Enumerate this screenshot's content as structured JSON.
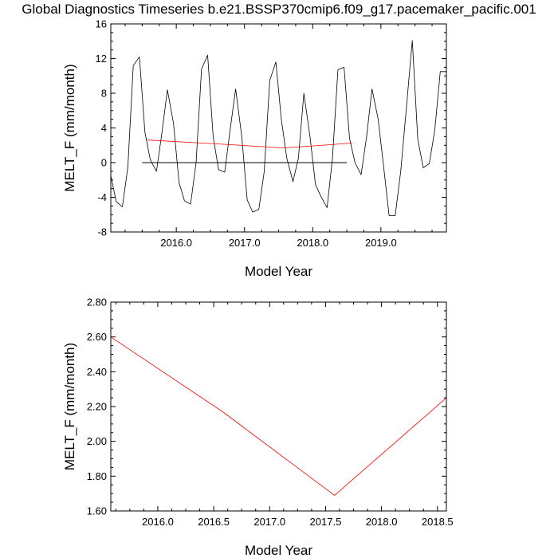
{
  "title": "Global Diagnostics Timeseries b.e21.BSSP370cmip6.f09_g17.pacemaker_pacific.001",
  "chart_data": [
    {
      "type": "line",
      "xlabel": "Model Year",
      "ylabel": "MELT_F (mm/month)",
      "xlim": [
        2015.04,
        2019.96
      ],
      "ylim": [
        -8,
        16
      ],
      "y_ticks": [
        -8,
        -4,
        0,
        4,
        8,
        12,
        16
      ],
      "y_tick_labels": [
        "-8",
        "-4",
        "0",
        "4",
        "8",
        "12",
        "16"
      ],
      "x_ticks": [
        2016.0,
        2017.0,
        2018.0,
        2019.0
      ],
      "x_tick_labels": [
        "2016.0",
        "2017.0",
        "2018.0",
        "2019.0"
      ],
      "reference_line": {
        "y": 0,
        "x_range": [
          2015.5,
          2018.5
        ],
        "color": "#000000"
      },
      "series": [
        {
          "color": "#000000",
          "x": [
            2015.04,
            2015.12,
            2015.21,
            2015.29,
            2015.37,
            2015.46,
            2015.54,
            2015.62,
            2015.71,
            2015.79,
            2015.87,
            2015.96,
            2016.04,
            2016.12,
            2016.21,
            2016.29,
            2016.37,
            2016.46,
            2016.54,
            2016.62,
            2016.71,
            2016.79,
            2016.87,
            2016.96,
            2017.04,
            2017.12,
            2017.21,
            2017.29,
            2017.37,
            2017.46,
            2017.54,
            2017.62,
            2017.71,
            2017.79,
            2017.87,
            2017.96,
            2018.04,
            2018.12,
            2018.21,
            2018.29,
            2018.37,
            2018.46,
            2018.54,
            2018.62,
            2018.71,
            2018.79,
            2018.87,
            2018.96,
            2019.04,
            2019.12,
            2019.21,
            2019.29,
            2019.37,
            2019.46,
            2019.54,
            2019.62,
            2019.71,
            2019.79,
            2019.87,
            2019.96
          ],
          "values": [
            -1.5,
            -4.5,
            -5.1,
            -0.5,
            11.2,
            12.2,
            3.5,
            0.3,
            -1.0,
            3.5,
            8.4,
            4.5,
            -2.3,
            -4.4,
            -4.8,
            0.0,
            10.8,
            12.4,
            3.0,
            -0.8,
            -1.1,
            3.8,
            8.5,
            3.0,
            -4.3,
            -5.7,
            -5.4,
            -1.0,
            9.5,
            11.6,
            5.0,
            0.5,
            -2.2,
            0.5,
            8.0,
            3.0,
            -2.5,
            -3.9,
            -5.2,
            0.5,
            10.7,
            11.0,
            2.8,
            0.0,
            -1.4,
            3.0,
            8.5,
            5.0,
            -0.5,
            -6.1,
            -6.1,
            -1.0,
            6.0,
            14.1,
            2.7,
            -0.6,
            -0.1,
            3.8,
            10.5,
            10.5
          ]
        },
        {
          "color": "#ff0000",
          "x": [
            2015.58,
            2016.58,
            2017.58,
            2018.58
          ],
          "values": [
            2.6,
            2.17,
            1.69,
            2.25
          ]
        }
      ]
    },
    {
      "type": "line",
      "xlabel": "Model Year",
      "ylabel": "MELT_F (mm/month)",
      "xlim": [
        2015.58,
        2018.58
      ],
      "ylim": [
        1.6,
        2.8
      ],
      "y_ticks": [
        1.6,
        1.8,
        2.0,
        2.2,
        2.4,
        2.6,
        2.8
      ],
      "y_tick_labels": [
        "1.60",
        "1.80",
        "2.00",
        "2.20",
        "2.40",
        "2.60",
        "2.80"
      ],
      "x_ticks": [
        2016.0,
        2016.5,
        2017.0,
        2017.5,
        2018.0,
        2018.5
      ],
      "x_tick_labels": [
        "2016.0",
        "2016.5",
        "2017.0",
        "2017.5",
        "2018.0",
        "2018.5"
      ],
      "series": [
        {
          "color": "#ff0000",
          "x": [
            2015.58,
            2016.58,
            2017.58,
            2018.58
          ],
          "values": [
            2.6,
            2.17,
            1.69,
            2.25
          ]
        }
      ]
    }
  ]
}
